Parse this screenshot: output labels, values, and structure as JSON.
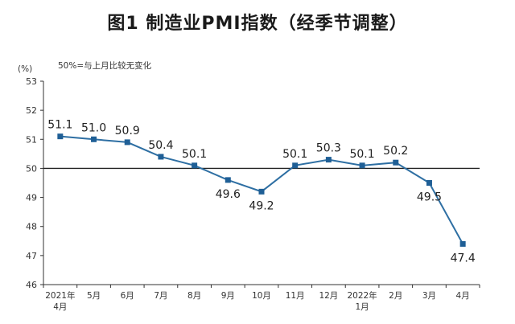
{
  "chart_data": {
    "type": "line",
    "title": "图1  制造业PMI指数（经季节调整）",
    "y_unit": "(%)",
    "annotation": "50%=与上月比较无变化",
    "ylim": [
      46,
      53
    ],
    "yticks": [
      46,
      47,
      48,
      49,
      50,
      51,
      52,
      53
    ],
    "reference_line": 50,
    "grid": false,
    "categories": [
      [
        "2021年",
        "4月"
      ],
      [
        "5月"
      ],
      [
        "6月"
      ],
      [
        "7月"
      ],
      [
        "8月"
      ],
      [
        "9月"
      ],
      [
        "10月"
      ],
      [
        "11月"
      ],
      [
        "12月"
      ],
      [
        "2022年",
        "1月"
      ],
      [
        "2月"
      ],
      [
        "3月"
      ],
      [
        "4月"
      ]
    ],
    "values": [
      51.1,
      51.0,
      50.9,
      50.4,
      50.1,
      49.6,
      49.2,
      50.1,
      50.3,
      50.1,
      50.2,
      49.5,
      47.4
    ],
    "data_labels": [
      "51.1",
      "51.0",
      "50.9",
      "50.4",
      "50.1",
      "49.6",
      "49.2",
      "50.1",
      "50.3",
      "50.1",
      "50.2",
      "49.5",
      "47.4"
    ],
    "label_position": [
      "above",
      "above",
      "above",
      "above",
      "above",
      "below",
      "below",
      "above",
      "above",
      "above",
      "above",
      "below",
      "below"
    ],
    "colors": {
      "line": "#2e6fa3",
      "marker": "#1f5f96",
      "axis": "#333333"
    }
  }
}
